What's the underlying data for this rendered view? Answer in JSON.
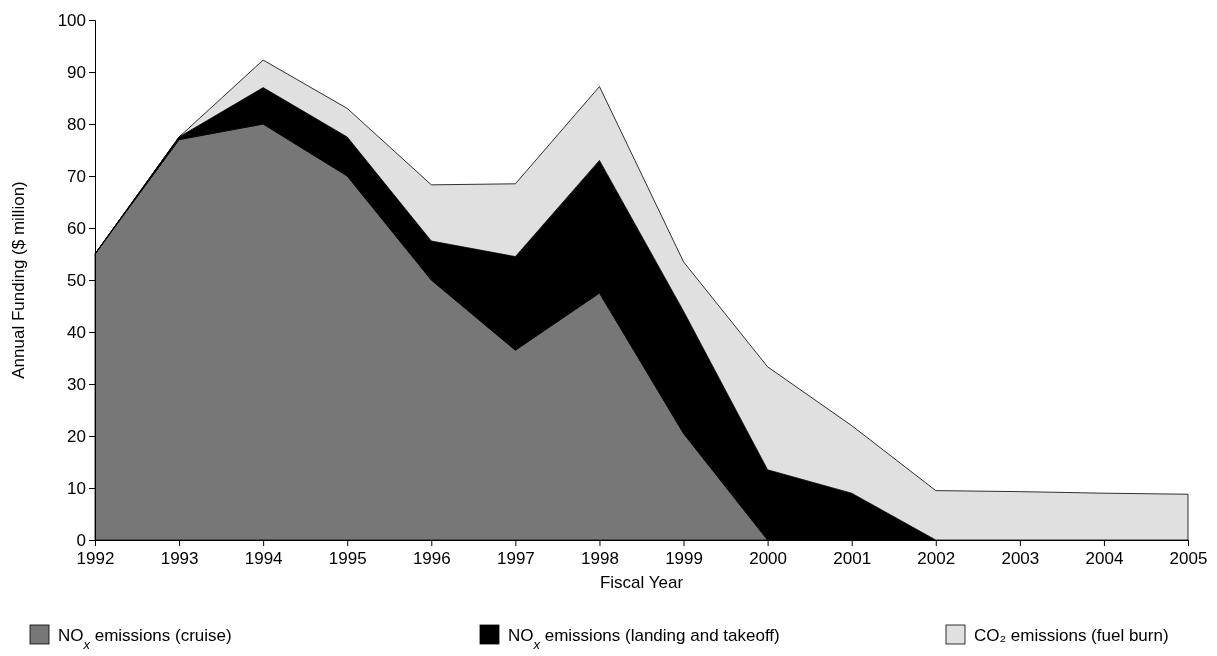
{
  "chart_data": {
    "type": "area",
    "stacked": true,
    "xlabel": "Fiscal Year",
    "ylabel": "Annual Funding ($ million)",
    "x": [
      1992,
      1993,
      1994,
      1995,
      1996,
      1997,
      1998,
      1999,
      2000,
      2001,
      2002,
      2003,
      2004,
      2005
    ],
    "xlim": [
      1992,
      2005
    ],
    "xticks": [
      1992,
      1993,
      1994,
      1995,
      1996,
      1997,
      1998,
      1999,
      2000,
      2001,
      2002,
      2003,
      2004,
      2005
    ],
    "ylim": [
      0,
      100
    ],
    "yticks": [
      0,
      10,
      20,
      30,
      40,
      50,
      60,
      70,
      80,
      90,
      100
    ],
    "grid": false,
    "legend": "bottom",
    "series": [
      {
        "name": "NO$_{x}$ emissions (cruise)",
        "color": "#777777",
        "values": [
          55,
          77,
          80,
          70,
          50,
          36.5,
          47.5,
          20.5,
          0,
          0,
          0,
          0,
          0,
          0
        ]
      },
      {
        "name": "NO$_{x}$ emissions (landing and takeoff)",
        "color": "#000000",
        "values": [
          0,
          0.5,
          7,
          7.5,
          7.5,
          18,
          25.5,
          23.5,
          13.5,
          9,
          0,
          0,
          0,
          0
        ]
      },
      {
        "name": "CO₂ emissions (fuel burn)",
        "color": "#e0e0e0",
        "values": [
          0,
          0,
          5.3,
          5.5,
          10.8,
          14,
          14.2,
          9.5,
          19.8,
          13,
          9.5,
          9.3,
          9,
          8.8
        ]
      }
    ]
  }
}
